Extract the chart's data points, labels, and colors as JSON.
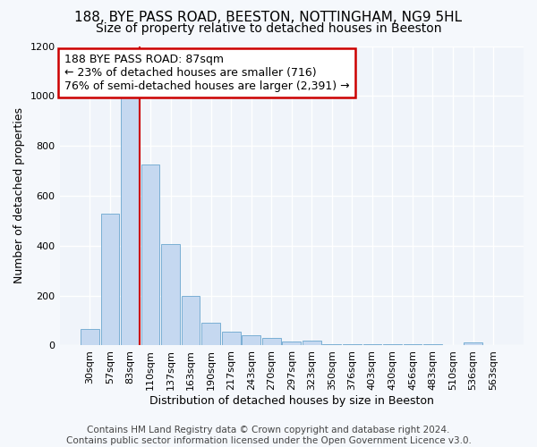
{
  "title": "188, BYE PASS ROAD, BEESTON, NOTTINGHAM, NG9 5HL",
  "subtitle": "Size of property relative to detached houses in Beeston",
  "xlabel": "Distribution of detached houses by size in Beeston",
  "ylabel": "Number of detached properties",
  "categories": [
    "30sqm",
    "57sqm",
    "83sqm",
    "110sqm",
    "137sqm",
    "163sqm",
    "190sqm",
    "217sqm",
    "243sqm",
    "270sqm",
    "297sqm",
    "323sqm",
    "350sqm",
    "376sqm",
    "403sqm",
    "430sqm",
    "456sqm",
    "483sqm",
    "510sqm",
    "536sqm",
    "563sqm"
  ],
  "values": [
    65,
    530,
    1000,
    725,
    408,
    198,
    90,
    57,
    42,
    32,
    15,
    20,
    5,
    5,
    5,
    5,
    5,
    5,
    0,
    12,
    0
  ],
  "bar_color": "#c5d8f0",
  "bar_edge_color": "#7aafd4",
  "property_line_color": "#cc0000",
  "annotation_text": "188 BYE PASS ROAD: 87sqm\n← 23% of detached houses are smaller (716)\n76% of semi-detached houses are larger (2,391) →",
  "annotation_box_color": "#ffffff",
  "annotation_box_edge_color": "#cc0000",
  "ylim": [
    0,
    1200
  ],
  "yticks": [
    0,
    200,
    400,
    600,
    800,
    1000,
    1200
  ],
  "background_color": "#f5f8fc",
  "plot_background_color": "#f0f4fa",
  "footer_text": "Contains HM Land Registry data © Crown copyright and database right 2024.\nContains public sector information licensed under the Open Government Licence v3.0.",
  "title_fontsize": 11,
  "subtitle_fontsize": 10,
  "axis_label_fontsize": 9,
  "tick_fontsize": 8,
  "annotation_fontsize": 9,
  "footer_fontsize": 7.5,
  "property_bar_index": 2
}
